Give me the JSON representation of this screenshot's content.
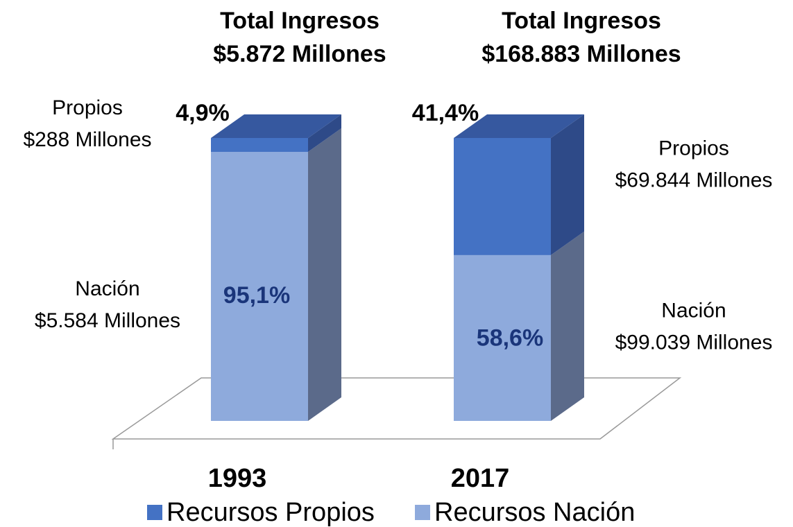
{
  "chart_data": {
    "type": "stacked-bar-3d",
    "categories": [
      "1993",
      "2017"
    ],
    "total_label": "Total Ingresos",
    "category_totals": [
      "$5.872 Millones",
      "$168.883 Millones"
    ],
    "series": [
      {
        "name": "Recursos Propios",
        "short_name": "Propios",
        "color": "#4472c4",
        "side_color": "#2e4a88",
        "top_color": "#36589f",
        "values": [
          4.9,
          41.4
        ],
        "value_labels": [
          "4,9%",
          "41,4%"
        ],
        "amount_labels": [
          "$288 Millones",
          "$69.844 Millones"
        ]
      },
      {
        "name": "Recursos Nación",
        "short_name": "Nación",
        "color": "#8eaadc",
        "side_color": "#5b6a8a",
        "top_color": "#7f97c4",
        "values": [
          95.1,
          58.6
        ],
        "value_labels": [
          "95,1%",
          "58,6%"
        ],
        "amount_labels": [
          "$5.584 Millones",
          "$99.039 Millones"
        ]
      }
    ]
  }
}
